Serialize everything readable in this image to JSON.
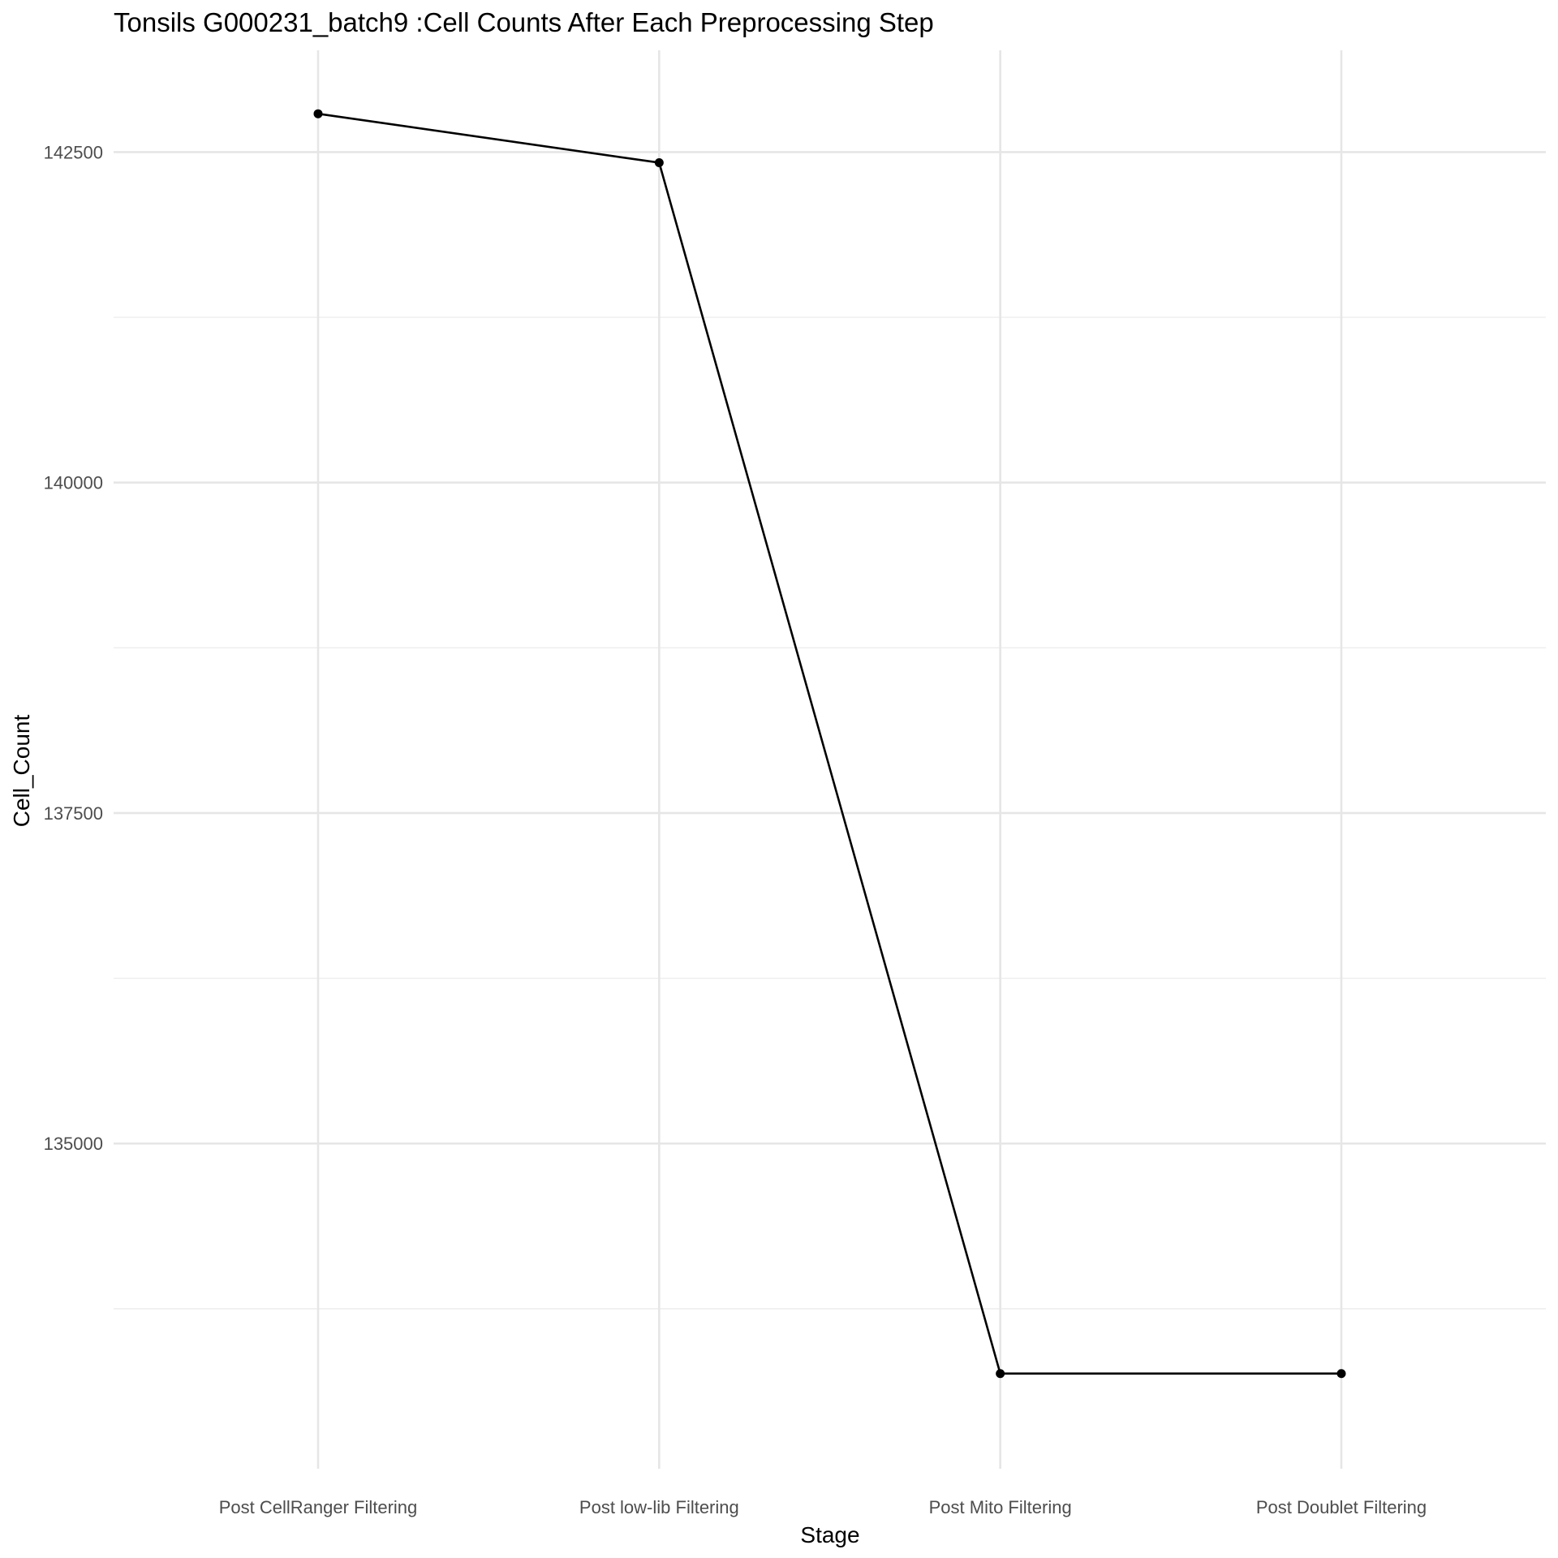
{
  "chart_data": {
    "type": "line",
    "title": "Tonsils G000231_batch9 :Cell Counts After Each Preprocessing Step",
    "xlabel": "Stage",
    "ylabel": "Cell_Count",
    "categories": [
      "Post CellRanger Filtering",
      "Post low-lib Filtering",
      "Post Mito Filtering",
      "Post Doublet Filtering"
    ],
    "series": [
      {
        "values": [
          142790,
          142420,
          133260,
          133260
        ]
      }
    ],
    "y_ticks": [
      135000,
      137500,
      140000,
      142500
    ],
    "y_tick_labels": [
      "135000",
      "137500",
      "140000",
      "142500"
    ],
    "ylim": [
      132540,
      143270
    ],
    "grid": true,
    "legend": "none",
    "colors": {
      "line": "#000000",
      "grid": "#e6e6e6",
      "background": "#ffffff"
    }
  }
}
